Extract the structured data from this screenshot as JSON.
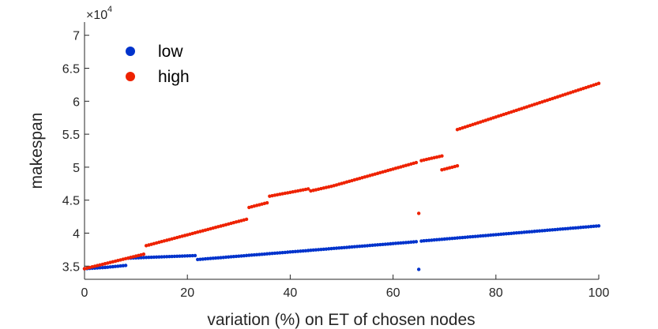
{
  "chart_data": {
    "type": "scatter",
    "xlabel": "variation (%) on ET of chosen nodes",
    "ylabel": "makespan",
    "y_multiplier_label": "×10",
    "y_multiplier_exponent": "4",
    "xlim": [
      0,
      100
    ],
    "ylim": [
      3.3,
      7.2
    ],
    "x_ticks": [
      0,
      20,
      40,
      60,
      80,
      100
    ],
    "x_tick_labels": [
      "0",
      "20",
      "40",
      "60",
      "80",
      "100"
    ],
    "y_ticks": [
      3.5,
      4,
      4.5,
      5,
      5.5,
      6,
      6.5,
      7
    ],
    "y_tick_labels": [
      "3.5",
      "4",
      "4.5",
      "5",
      "5.5",
      "6",
      "6.5",
      "7"
    ],
    "legend_position": "top-left",
    "grid": false,
    "series": [
      {
        "name": "low",
        "color": "#0033cc",
        "segments": [
          {
            "x_start": 0,
            "x_end": 4,
            "y_start": 3.46,
            "y_end": 3.48
          },
          {
            "x_start": 4,
            "x_end": 8,
            "y_start": 3.48,
            "y_end": 3.51
          },
          {
            "x_start": 8.5,
            "x_end": 21.5,
            "y_start": 3.62,
            "y_end": 3.66
          },
          {
            "x_start": 22,
            "x_end": 64.5,
            "y_start": 3.6,
            "y_end": 3.87
          },
          {
            "x_start": 65.5,
            "x_end": 100,
            "y_start": 3.88,
            "y_end": 4.11
          }
        ],
        "points": [
          {
            "x": 65,
            "y": 3.45
          }
        ]
      },
      {
        "name": "high",
        "color": "#ee2200",
        "segments": [
          {
            "x_start": 0,
            "x_end": 11.5,
            "y_start": 3.46,
            "y_end": 3.68
          },
          {
            "x_start": 12,
            "x_end": 31.5,
            "y_start": 3.81,
            "y_end": 4.21
          },
          {
            "x_start": 32,
            "x_end": 35.5,
            "y_start": 4.39,
            "y_end": 4.46
          },
          {
            "x_start": 36,
            "x_end": 43.5,
            "y_start": 4.56,
            "y_end": 4.67
          },
          {
            "x_start": 44,
            "x_end": 48,
            "y_start": 4.64,
            "y_end": 4.71
          },
          {
            "x_start": 48.5,
            "x_end": 64.5,
            "y_start": 4.72,
            "y_end": 5.07
          },
          {
            "x_start": 65.5,
            "x_end": 69.5,
            "y_start": 5.1,
            "y_end": 5.17
          },
          {
            "x_start": 69.5,
            "x_end": 72.5,
            "y_start": 4.96,
            "y_end": 5.02
          },
          {
            "x_start": 72.5,
            "x_end": 100,
            "y_start": 5.57,
            "y_end": 6.27
          }
        ],
        "points": [
          {
            "x": 65,
            "y": 4.3
          }
        ]
      }
    ]
  }
}
